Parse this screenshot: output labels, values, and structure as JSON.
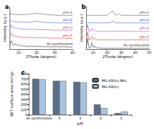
{
  "chart_data": [
    {
      "type": "line",
      "title": "a",
      "xlabel": "2Theta (degree)",
      "ylabel": "Intensity (a.u.)",
      "x": [
        5,
        6,
        7,
        8,
        9,
        10,
        11,
        12,
        13,
        14,
        15,
        17,
        19,
        21,
        23,
        25,
        27,
        29,
        31,
        33,
        35,
        37,
        40
      ],
      "series": [
        {
          "name": "As-synthesized",
          "color": "#222222",
          "values": [
            8,
            20,
            9,
            13,
            8,
            12,
            7,
            9,
            7,
            8,
            6,
            7,
            6,
            7,
            6,
            6,
            6,
            5,
            6,
            5,
            6,
            5,
            5
          ]
        },
        {
          "name": "pH=5",
          "color": "#d9342b",
          "values": [
            28,
            38,
            30,
            32,
            29,
            30,
            28,
            29,
            28,
            28,
            27,
            28,
            27,
            27,
            27,
            27,
            26,
            26,
            26,
            26,
            26,
            25,
            25
          ]
        },
        {
          "name": "pH=3",
          "color": "#b03fb0",
          "values": [
            48,
            58,
            50,
            52,
            48,
            50,
            47,
            48,
            47,
            48,
            46,
            47,
            47,
            46,
            46,
            46,
            46,
            45,
            45,
            45,
            45,
            45,
            45
          ]
        },
        {
          "name": "pH=2",
          "color": "#3a5fcd",
          "values": [
            64,
            68,
            65,
            65,
            64,
            65,
            64,
            64,
            64,
            64,
            63,
            64,
            66,
            65,
            64,
            63,
            63,
            63,
            62,
            62,
            62,
            62,
            62
          ]
        },
        {
          "name": "pH=1",
          "color": "#555555",
          "values": [
            82,
            84,
            82,
            82,
            81,
            82,
            81,
            82,
            82,
            82,
            82,
            83,
            85,
            84,
            83,
            82,
            81,
            81,
            80,
            80,
            80,
            80,
            80
          ]
        }
      ],
      "xlim": [
        5,
        40
      ],
      "xticks": [
        10,
        20,
        30,
        40
      ],
      "ylim": [
        0,
        100
      ],
      "tick_labels": "x",
      "grid": false
    },
    {
      "type": "line",
      "title": "b",
      "xlabel": "2Theta (degree)",
      "ylabel": "Intensity (a.u.)",
      "x": [
        5,
        6,
        7,
        8,
        9,
        10,
        11,
        12,
        14,
        16,
        18,
        20,
        22,
        24,
        26,
        28,
        30,
        32,
        35,
        38,
        41,
        44,
        47,
        50
      ],
      "series": [
        {
          "name": "As-synthesized",
          "color": "#222222",
          "values": [
            2,
            25,
            3,
            3,
            15,
            4,
            8,
            3,
            3,
            2,
            2,
            2,
            2,
            2,
            2,
            2,
            2,
            2,
            2,
            2,
            2,
            2,
            2,
            2
          ]
        },
        {
          "name": "pH=5",
          "color": "#d9342b",
          "values": [
            22,
            40,
            22,
            22,
            30,
            23,
            26,
            22,
            22,
            22,
            22,
            22,
            22,
            22,
            22,
            22,
            22,
            22,
            22,
            22,
            22,
            22,
            22,
            22
          ]
        },
        {
          "name": "pH=3",
          "color": "#b03fb0",
          "values": [
            42,
            58,
            42,
            42,
            50,
            43,
            46,
            42,
            42,
            42,
            42,
            42,
            42,
            42,
            42,
            42,
            42,
            42,
            42,
            42,
            42,
            42,
            42,
            42
          ]
        },
        {
          "name": "pH=2",
          "color": "#3a5fcd",
          "values": [
            62,
            63,
            62,
            62,
            62,
            62,
            62,
            62,
            62,
            62,
            62,
            62,
            62,
            66,
            62,
            62,
            62,
            62,
            62,
            62,
            62,
            62,
            62,
            62
          ]
        },
        {
          "name": "pH=1",
          "color": "#555555",
          "values": [
            80,
            80,
            80,
            80,
            80,
            80,
            80,
            80,
            80,
            80,
            80,
            80,
            86,
            90,
            80,
            84,
            80,
            80,
            80,
            80,
            80,
            80,
            80,
            80
          ]
        }
      ],
      "xlim": [
        5,
        50
      ],
      "xticks": [
        10,
        20,
        30,
        40,
        50
      ],
      "ylim": [
        0,
        100
      ],
      "tick_labels": "x",
      "grid": false
    },
    {
      "type": "bar",
      "title": "c",
      "xlabel": "pH",
      "ylabel": "BET surface area (m²/g)",
      "categories": [
        "As-synthesized",
        "5",
        "3",
        "2",
        "1"
      ],
      "series": [
        {
          "name": "MIL-68(In)-NH₂",
          "color": "#5b6f8a",
          "values": [
            700,
            660,
            640,
            200,
            30
          ]
        },
        {
          "name": "MIL-68(In)",
          "color": "#a7c4e0",
          "values": [
            690,
            660,
            630,
            130,
            60
          ]
        }
      ],
      "ylim": [
        0,
        800
      ],
      "yticks": [
        0,
        100,
        200,
        300,
        400,
        500,
        600,
        700,
        800
      ],
      "legend": "upper right",
      "grid": false
    }
  ]
}
